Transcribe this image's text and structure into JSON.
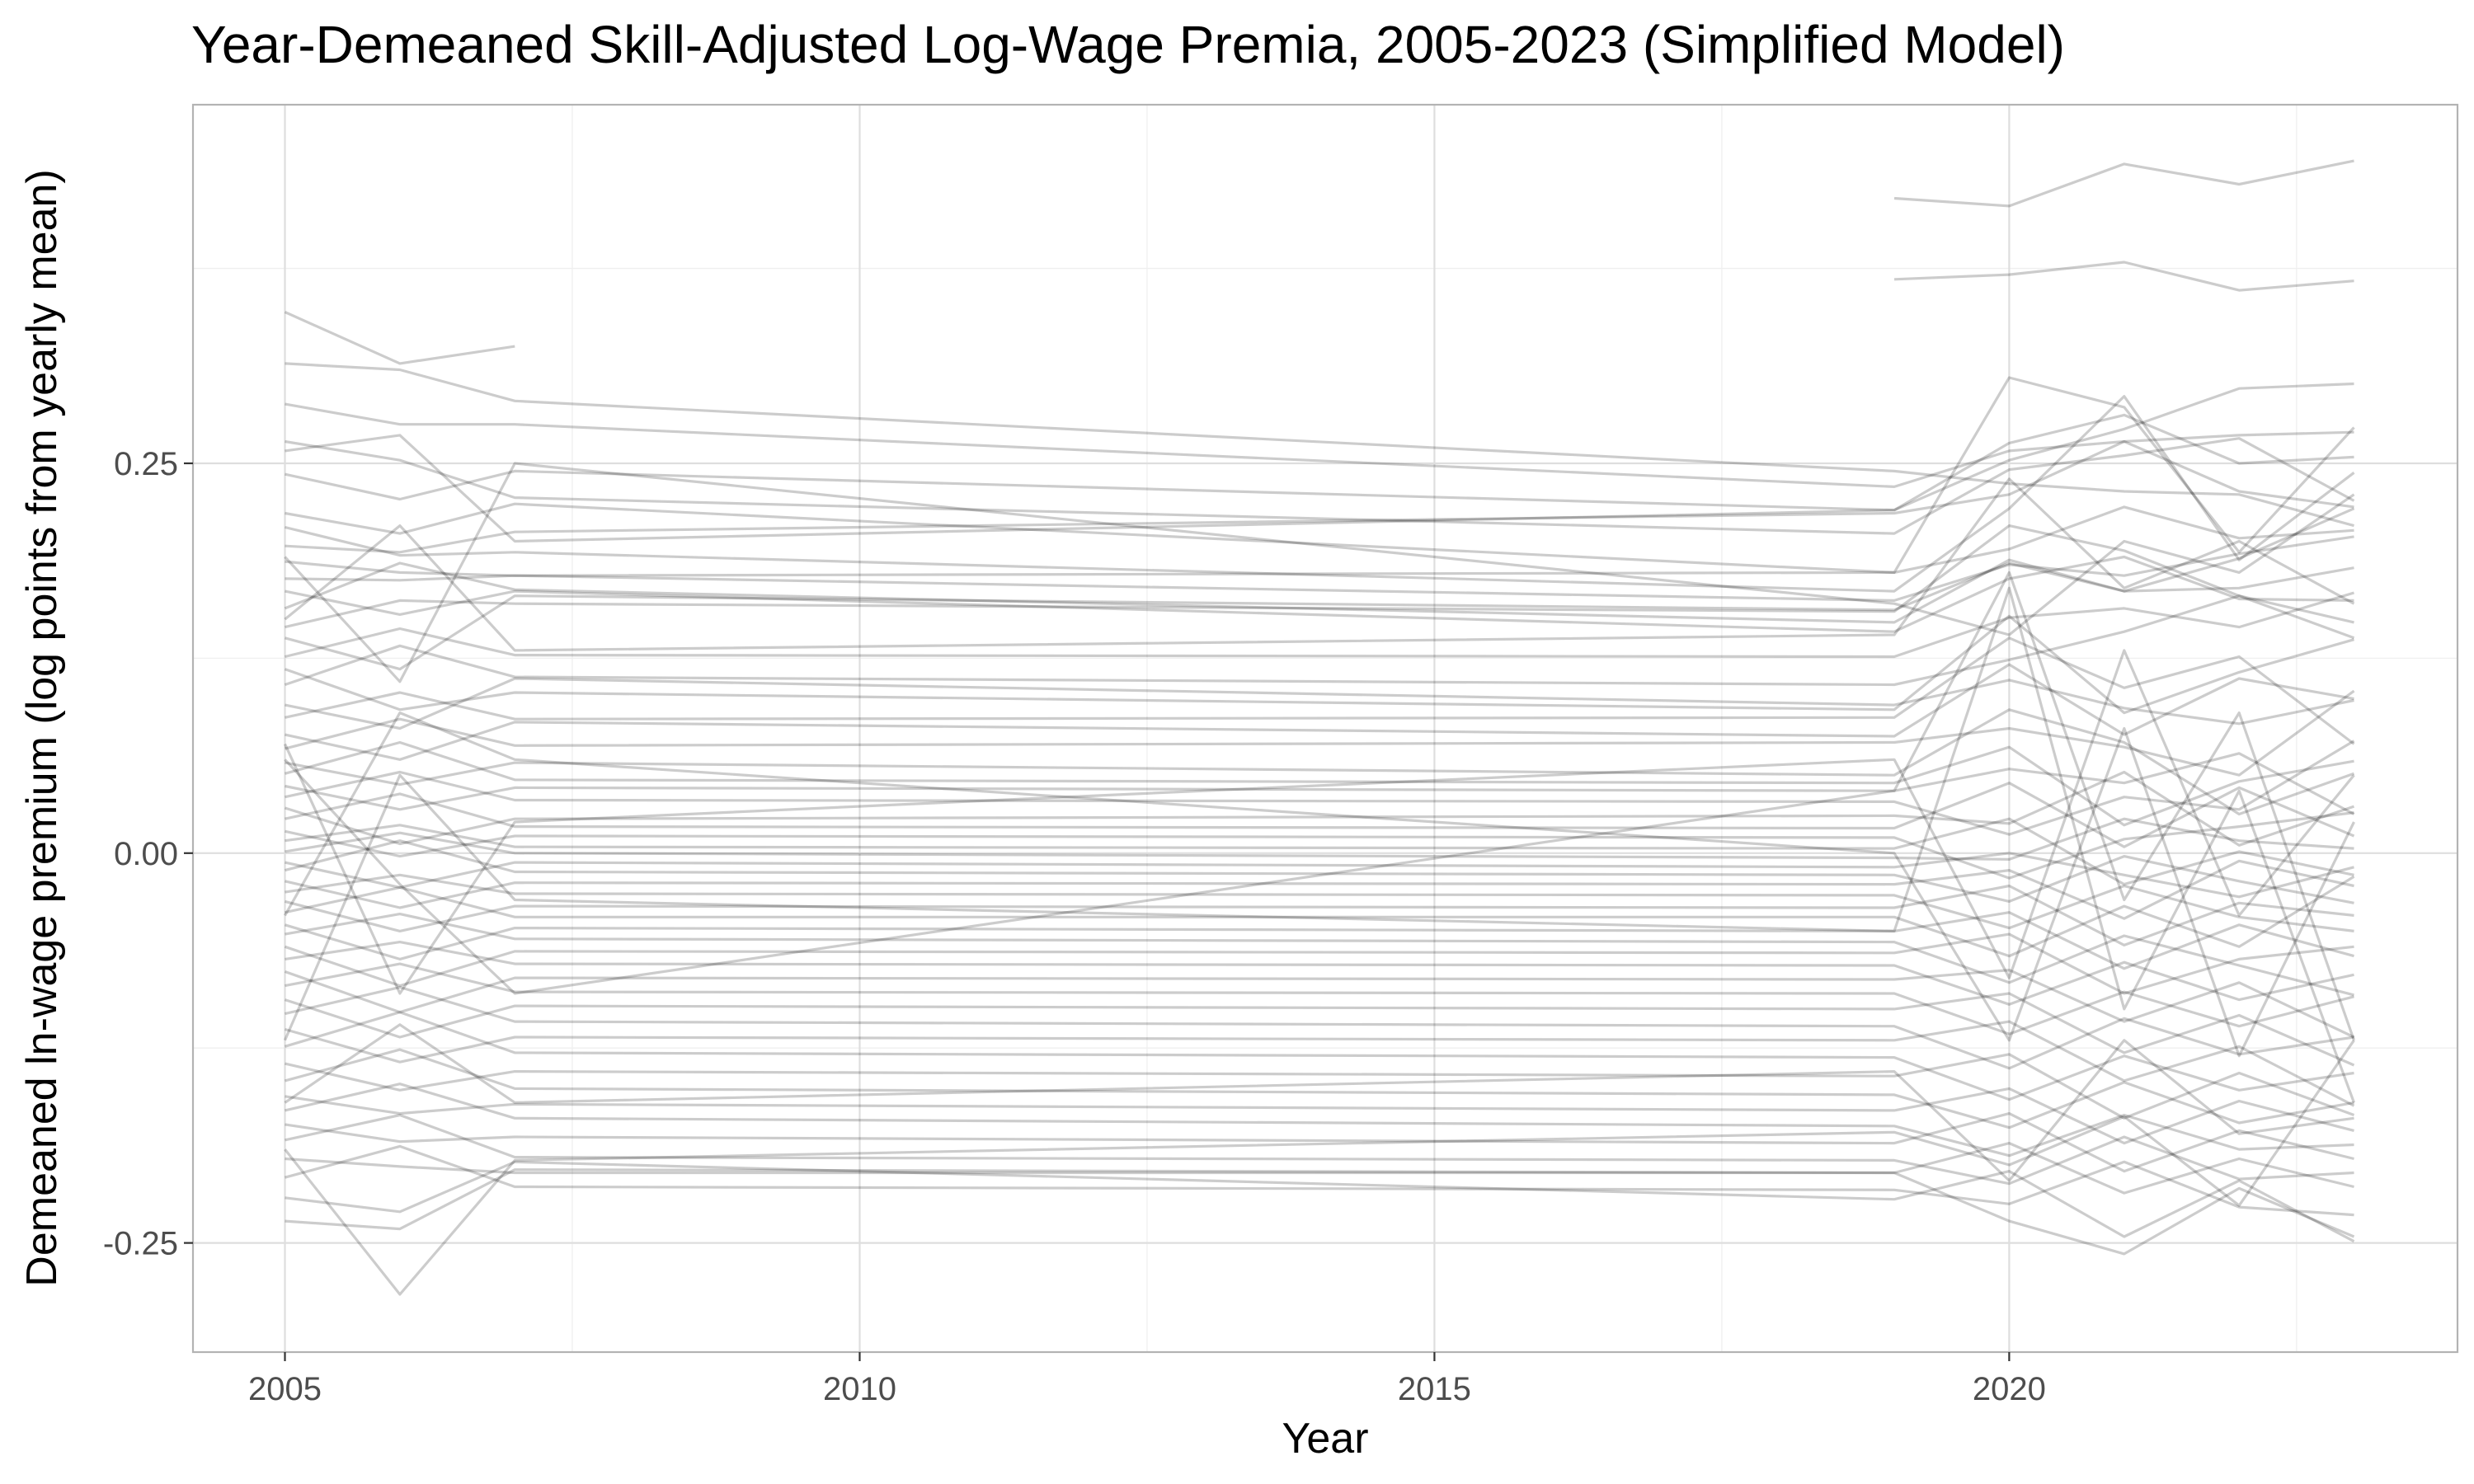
{
  "chart_data": {
    "type": "line",
    "title": "Year-Demeaned Skill-Adjusted Log-Wage Premia, 2005-2023 (Simplified Model)",
    "xlabel": "Year",
    "ylabel": "Demeaned ln-wage premium (log points from yearly mean)",
    "x_ticks": [
      "2005",
      "2010",
      "2015",
      "2020"
    ],
    "y_ticks": [
      "-0.25",
      "0.00",
      "0.25"
    ],
    "xlim": [
      2004.2,
      2023.9
    ],
    "ylim": [
      -0.32,
      0.48
    ],
    "grid": true,
    "line_color": "#000000",
    "line_opacity": 0.2,
    "years": [
      2005,
      2006,
      2007,
      2019,
      2020,
      2021,
      2022,
      2023
    ],
    "series": [
      {
        "values": [
          null,
          null,
          null,
          0.42,
          0.415,
          0.442,
          0.429,
          0.444
        ]
      },
      {
        "values": [
          null,
          null,
          null,
          0.368,
          0.371,
          0.379,
          0.361,
          0.367
        ]
      },
      {
        "values": [
          0.347,
          0.314,
          0.325,
          null,
          null,
          null,
          null,
          null
        ]
      },
      {
        "values": [
          0.314,
          0.31,
          0.29,
          0.245,
          0.237,
          0.232,
          0.23,
          0.21
        ]
      },
      {
        "values": [
          0.288,
          0.275,
          0.275,
          0.235,
          0.258,
          0.264,
          0.268,
          0.27
        ]
      },
      {
        "values": [
          0.264,
          0.252,
          0.228,
          0.205,
          0.246,
          0.255,
          0.266,
          0.226
        ]
      },
      {
        "values": [
          0.258,
          0.268,
          0.2,
          0.22,
          0.252,
          0.272,
          0.298,
          0.301
        ]
      },
      {
        "values": [
          0.243,
          0.227,
          0.245,
          0.22,
          0.263,
          0.281,
          0.25,
          0.254
        ]
      },
      {
        "values": [
          0.218,
          0.205,
          0.224,
          0.18,
          0.305,
          0.286,
          0.193,
          0.273
        ]
      },
      {
        "values": [
          0.209,
          0.191,
          0.193,
          0.168,
          0.221,
          0.293,
          0.188,
          0.244
        ]
      },
      {
        "values": [
          0.197,
          0.193,
          0.206,
          0.218,
          0.23,
          0.264,
          0.232,
          0.222
        ]
      },
      {
        "values": [
          0.187,
          0.18,
          0.178,
          0.18,
          0.195,
          0.222,
          0.202,
          0.207
        ]
      },
      {
        "values": [
          0.176,
          0.175,
          0.178,
          0.162,
          0.185,
          0.178,
          0.192,
          0.203
        ]
      },
      {
        "values": [
          0.168,
          0.153,
          0.168,
          0.142,
          0.176,
          0.19,
          0.163,
          0.162
        ]
      },
      {
        "values": [
          0.157,
          0.186,
          0.169,
          0.148,
          0.188,
          0.168,
          0.17,
          0.183
        ]
      },
      {
        "values": [
          0.145,
          0.162,
          0.16,
          0.155,
          0.21,
          0.194,
          0.165,
          0.138
        ]
      },
      {
        "values": [
          0.138,
          0.118,
          0.165,
          0.156,
          0.186,
          0.168,
          0.189,
          0.221
        ]
      },
      {
        "values": [
          0.126,
          0.144,
          0.127,
          0.126,
          0.151,
          0.157,
          0.145,
          0.167
        ]
      },
      {
        "values": [
          0.118,
          0.092,
          0.103,
          0.092,
          0.152,
          0.09,
          0.116,
          0.137
        ]
      },
      {
        "values": [
          0.108,
          0.133,
          0.113,
          0.108,
          0.124,
          0.142,
          0.165,
          0.148
        ]
      },
      {
        "values": [
          0.095,
          0.08,
          0.112,
          0.095,
          0.111,
          0.093,
          0.083,
          0.098
        ]
      },
      {
        "values": [
          0.087,
          0.103,
          0.086,
          0.087,
          0.138,
          0.106,
          0.126,
          0.07
        ]
      },
      {
        "values": [
          0.076,
          0.06,
          0.084,
          0.075,
          0.121,
          0.076,
          0.112,
          0.099
        ]
      },
      {
        "values": [
          0.067,
          0.086,
          0.069,
          0.071,
          0.08,
          0.068,
          0.05,
          0.104
        ]
      },
      {
        "values": [
          0.058,
          0.044,
          0.058,
          0.05,
          0.092,
          0.071,
          0.025,
          0.051
        ]
      },
      {
        "values": [
          0.051,
          0.071,
          0.047,
          0.045,
          0.068,
          0.018,
          0.046,
          0.059
        ]
      },
      {
        "values": [
          0.043,
          0.028,
          0.042,
          0.04,
          0.054,
          0.045,
          0.064,
          0.025
        ]
      },
      {
        "values": [
          0.036,
          0.052,
          0.034,
          0.033,
          0.012,
          0.036,
          0.028,
          0.072
        ]
      },
      {
        "values": [
          0.029,
          0.006,
          0.022,
          0.024,
          0.019,
          0.052,
          0.005,
          0.03
        ]
      },
      {
        "values": [
          0.022,
          0.038,
          0.017,
          0.016,
          0.045,
          0.004,
          0.042,
          0.011
        ]
      },
      {
        "values": [
          0.014,
          -0.002,
          0.011,
          0.01,
          -0.016,
          0.009,
          0.017,
          0.026
        ]
      },
      {
        "values": [
          0.008,
          0.018,
          0.004,
          0.003,
          0.022,
          -0.02,
          0.001,
          -0.014
        ]
      },
      {
        "values": [
          0.001,
          0.013,
          0.0,
          -0.003,
          -0.004,
          0.022,
          0.008,
          0.003
        ]
      },
      {
        "values": [
          -0.006,
          -0.022,
          -0.006,
          -0.009,
          0.0,
          -0.014,
          -0.028,
          -0.009
        ]
      },
      {
        "values": [
          -0.011,
          0.008,
          -0.012,
          -0.014,
          -0.031,
          -0.002,
          -0.018,
          -0.032
        ]
      },
      {
        "values": [
          -0.018,
          -0.035,
          -0.019,
          -0.02,
          -0.011,
          -0.042,
          -0.005,
          -0.021
        ]
      },
      {
        "values": [
          -0.025,
          -0.014,
          -0.026,
          -0.027,
          -0.048,
          -0.021,
          -0.041,
          -0.05
        ]
      },
      {
        "values": [
          -0.031,
          -0.05,
          -0.034,
          -0.035,
          -0.021,
          -0.059,
          -0.032,
          -0.04
        ]
      },
      {
        "values": [
          -0.038,
          -0.022,
          -0.041,
          -0.041,
          -0.066,
          -0.034,
          -0.06,
          -0.015
        ]
      },
      {
        "values": [
          -0.046,
          -0.068,
          -0.048,
          -0.05,
          -0.038,
          -0.074,
          -0.046,
          -0.066
        ]
      },
      {
        "values": [
          -0.052,
          -0.039,
          -0.055,
          -0.057,
          -0.083,
          -0.053,
          -0.072,
          -0.091
        ]
      },
      {
        "values": [
          -0.06,
          -0.085,
          -0.063,
          -0.064,
          -0.052,
          -0.09,
          -0.068,
          -0.06
        ]
      },
      {
        "values": [
          -0.068,
          -0.057,
          -0.071,
          -0.072,
          -0.097,
          -0.07,
          -0.094,
          -0.078
        ]
      },
      {
        "values": [
          -0.076,
          -0.102,
          -0.08,
          -0.081,
          -0.075,
          -0.108,
          -0.083,
          -0.118
        ]
      },
      {
        "values": [
          -0.085,
          -0.071,
          -0.089,
          -0.09,
          -0.116,
          -0.089,
          -0.111,
          -0.092
        ]
      },
      {
        "values": [
          -0.094,
          -0.118,
          -0.098,
          -0.1,
          -0.09,
          -0.128,
          -0.104,
          -0.136
        ]
      },
      {
        "values": [
          -0.103,
          -0.086,
          -0.108,
          -0.111,
          -0.138,
          -0.106,
          -0.129,
          -0.118
        ]
      },
      {
        "values": [
          -0.113,
          -0.134,
          -0.118,
          -0.12,
          -0.108,
          -0.146,
          -0.124,
          -0.162
        ]
      },
      {
        "values": [
          -0.124,
          -0.102,
          -0.128,
          -0.131,
          -0.158,
          -0.13,
          -0.152,
          -0.141
        ]
      },
      {
        "values": [
          -0.135,
          -0.152,
          -0.14,
          -0.143,
          -0.129,
          -0.17,
          -0.141,
          -0.168
        ]
      },
      {
        "values": [
          -0.146,
          -0.126,
          -0.151,
          -0.155,
          -0.176,
          -0.147,
          -0.173,
          -0.16
        ]
      },
      {
        "values": [
          -0.156,
          -0.167,
          -0.161,
          -0.165,
          -0.151,
          -0.186,
          -0.159,
          -0.178
        ]
      },
      {
        "values": [
          -0.165,
          -0.148,
          -0.17,
          -0.175,
          -0.194,
          -0.168,
          -0.19,
          -0.187
        ]
      },
      {
        "values": [
          -0.174,
          -0.185,
          -0.182,
          -0.186,
          -0.167,
          -0.204,
          -0.178,
          -0.196
        ]
      },
      {
        "values": [
          -0.184,
          -0.168,
          -0.195,
          -0.197,
          -0.212,
          -0.182,
          -0.209,
          -0.205
        ]
      },
      {
        "values": [
          -0.196,
          -0.201,
          -0.205,
          -0.205,
          -0.186,
          -0.218,
          -0.196,
          -0.214
        ]
      },
      {
        "values": [
          -0.208,
          -0.188,
          -0.214,
          -0.216,
          -0.225,
          -0.198,
          -0.227,
          -0.232
        ]
      },
      {
        "values": [
          -0.221,
          -0.23,
          -0.198,
          -0.222,
          -0.204,
          -0.246,
          -0.21,
          -0.249
        ]
      },
      {
        "values": [
          -0.236,
          -0.241,
          -0.203,
          -0.205,
          -0.236,
          -0.257,
          -0.215,
          -0.246
        ]
      },
      {
        "values": [
          -0.19,
          -0.283,
          -0.197,
          -0.179,
          -0.2,
          -0.169,
          -0.226,
          -0.12
        ]
      },
      {
        "values": [
          -0.16,
          -0.11,
          -0.16,
          -0.14,
          -0.21,
          -0.12,
          -0.18,
          -0.17
        ]
      },
      {
        "values": [
          0.06,
          -0.02,
          -0.09,
          0.04,
          0.18,
          -0.03,
          0.09,
          -0.12
        ]
      },
      {
        "values": [
          -0.12,
          0.05,
          -0.03,
          -0.05,
          0.17,
          -0.1,
          0.04,
          -0.16
        ]
      },
      {
        "values": [
          0.07,
          -0.09,
          0.02,
          0.06,
          -0.08,
          0.13,
          -0.04,
          0.05
        ]
      },
      {
        "values": [
          -0.04,
          0.09,
          0.06,
          0.0,
          -0.12,
          0.08,
          -0.13,
          0.02
        ]
      },
      {
        "values": [
          0.19,
          0.11,
          0.25,
          0.16,
          0.14,
          0.2,
          0.18,
          0.23
        ]
      },
      {
        "values": [
          0.15,
          0.21,
          0.13,
          0.14,
          0.24,
          0.17,
          0.2,
          0.16
        ]
      }
    ]
  }
}
